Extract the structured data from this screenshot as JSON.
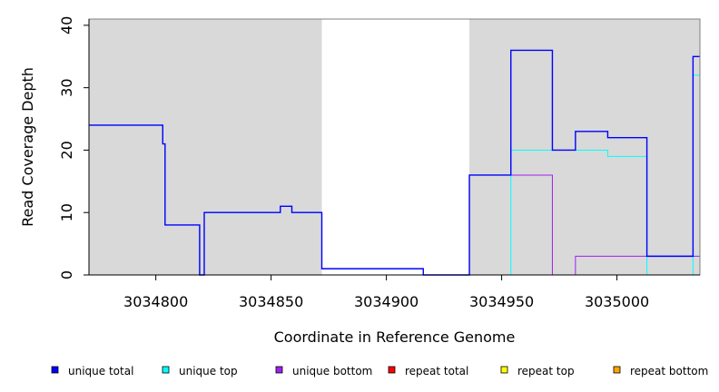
{
  "chart_data": {
    "type": "line",
    "title": "",
    "xlabel": "Coordinate in Reference Genome",
    "ylabel": "Read Coverage Depth",
    "xlim": [
      3034771,
      3035036
    ],
    "ylim": [
      0,
      41
    ],
    "x_ticks": [
      3034800,
      3034850,
      3034900,
      3034950,
      3035000
    ],
    "y_ticks": [
      0,
      10,
      20,
      30,
      40
    ],
    "shaded_regions": [
      {
        "start": 3034771,
        "end": 3034872
      },
      {
        "start": 3034936,
        "end": 3035036
      }
    ],
    "series": [
      {
        "name": "unique total",
        "color": "#0000ff",
        "x": [
          3034771,
          3034803,
          3034804,
          3034805,
          3034819,
          3034821,
          3034854,
          3034859,
          3034872,
          3034916,
          3034936,
          3034954,
          3034972,
          3034982,
          3034996,
          3035013,
          3035033,
          3035036
        ],
        "values": [
          24,
          21,
          8,
          8,
          0,
          10,
          11,
          10,
          1,
          0,
          16,
          36,
          20,
          23,
          22,
          3,
          35,
          35
        ]
      },
      {
        "name": "unique top",
        "color": "#00ffff",
        "x": [
          3034771,
          3034803,
          3034804,
          3034805,
          3034819,
          3034821,
          3034854,
          3034859,
          3034872,
          3034916,
          3034936,
          3034954,
          3034996,
          3035013,
          3035033,
          3035036
        ],
        "values": [
          24,
          21,
          8,
          8,
          0,
          10,
          11,
          10,
          1,
          0,
          0,
          20,
          19,
          0,
          32,
          32
        ]
      },
      {
        "name": "unique bottom",
        "color": "#a020f0",
        "x": [
          3034771,
          3034916,
          3034936,
          3034972,
          3034982,
          3035013,
          3035036
        ],
        "values": [
          0,
          0,
          16,
          0,
          3,
          3,
          3
        ]
      },
      {
        "name": "repeat total",
        "color": "#ff0000",
        "x": [
          3034771,
          3034936
        ],
        "values": [
          0,
          0
        ]
      },
      {
        "name": "repeat top",
        "color": "#ffff00",
        "x": [
          3034936,
          3035036
        ],
        "values": [
          0,
          0
        ]
      },
      {
        "name": "repeat bottom",
        "color": "#ffa500",
        "x": [
          3034936,
          3035036
        ],
        "values": [
          0,
          0
        ]
      }
    ],
    "legend": {
      "placement": "bottom",
      "entries": [
        {
          "label": "unique total",
          "color": "#0000ff"
        },
        {
          "label": "unique top",
          "color": "#00ffff"
        },
        {
          "label": "unique bottom",
          "color": "#a020f0"
        },
        {
          "label": "repeat total",
          "color": "#ff0000"
        },
        {
          "label": "repeat top",
          "color": "#ffff00"
        },
        {
          "label": "repeat bottom",
          "color": "#ffa500"
        }
      ]
    }
  }
}
